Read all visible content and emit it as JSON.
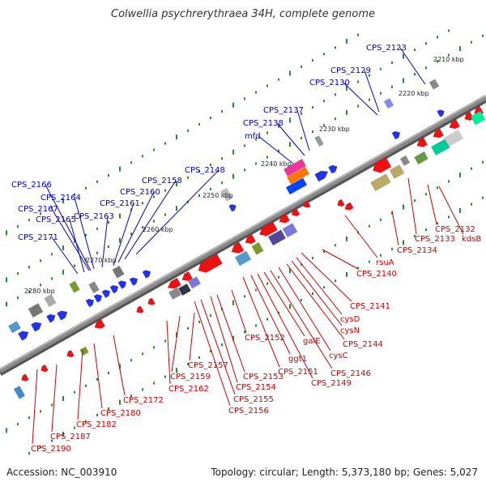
{
  "title": "Colwellia psychrerythraea 34H, complete genome",
  "footer": {
    "accession": "Accession: NC_003910",
    "topology": "Topology: circular; Length: 5,373,180 bp; Genes: 5,027"
  },
  "colors": {
    "forward_gene": "#2233ee",
    "reverse_gene": "#ee1111",
    "forward_label": "#0000cc",
    "reverse_label": "#cc0000",
    "backbone": "#888888",
    "tick": "#2a8a2a"
  },
  "kbp_markers": [
    "2210 kbp",
    "2220 kbp",
    "2230 kbp",
    "2240 kbp",
    "2250 kbp",
    "2260 kbp",
    "2270 kbp",
    "2280 kbp"
  ],
  "forward_labels": [
    "CPS_2123",
    "CPS_2129",
    "CPS_2130",
    "CPS_2137",
    "CPS_2138",
    "mfd",
    "CPS_2148",
    "CPS_2158",
    "CPS_2160",
    "CPS_2161",
    "CPS_2163",
    "CPS_2165",
    "CPS_2164",
    "CPS_2166",
    "CPS_2167",
    "CPS_2171"
  ],
  "reverse_labels": [
    "CPS_2132",
    "kdsB",
    "CPS_2133",
    "CPS_2134",
    "rsuA",
    "CPS_2140",
    "CPS_2141",
    "cysD",
    "cysN",
    "CPS_2144",
    "cysC",
    "CPS_2146",
    "galE",
    "CPS_2149",
    "ggt1",
    "CPS_2151",
    "CPS_2152",
    "CPS_2153",
    "CPS_2154",
    "CPS_2155",
    "CPS_2156",
    "CPS_2157",
    "CPS_2159",
    "CPS_2162",
    "CPS_2172",
    "CPS_2180",
    "CPS_2182",
    "CPS_2187",
    "CPS_2190"
  ]
}
